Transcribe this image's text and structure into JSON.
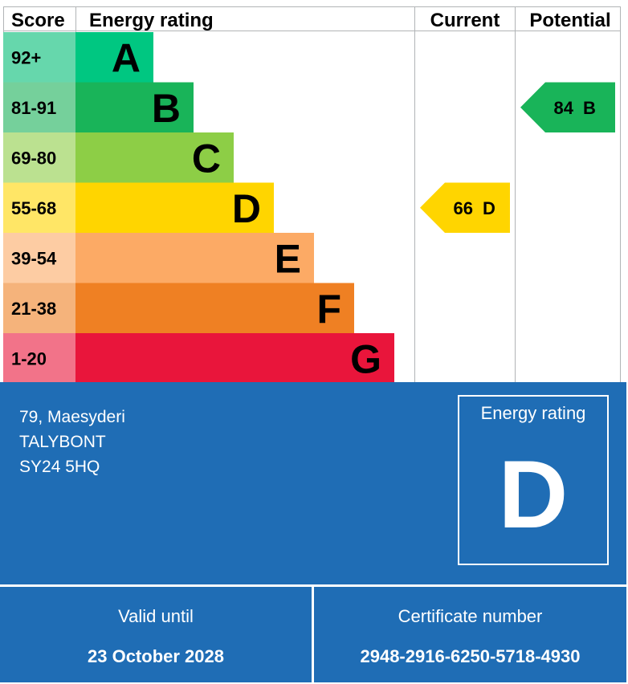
{
  "chart_data": {
    "type": "bar",
    "title": "",
    "headers": {
      "score": "Score",
      "rating": "Energy rating",
      "current": "Current",
      "potential": "Potential"
    },
    "bands": [
      {
        "letter": "A",
        "range": "92+",
        "color": "#00c781",
        "score_bg": "#66d7ac"
      },
      {
        "letter": "B",
        "range": "81-91",
        "color": "#19b459",
        "score_bg": "#75d09b"
      },
      {
        "letter": "C",
        "range": "69-80",
        "color": "#8dce46",
        "score_bg": "#bbe190"
      },
      {
        "letter": "D",
        "range": "55-68",
        "color": "#ffd500",
        "score_bg": "#ffe666"
      },
      {
        "letter": "E",
        "range": "39-54",
        "color": "#fcaa65",
        "score_bg": "#fdcca3"
      },
      {
        "letter": "F",
        "range": "21-38",
        "color": "#ef8023",
        "score_bg": "#f5b37b"
      },
      {
        "letter": "G",
        "range": "1-20",
        "color": "#e9153b",
        "score_bg": "#f27389"
      }
    ],
    "current": {
      "value": 66,
      "band": "D",
      "color": "#ffd500"
    },
    "potential": {
      "value": 84,
      "band": "B",
      "color": "#19b459"
    }
  },
  "property": {
    "address_lines": [
      "79, Maesyderi",
      "TALYBONT",
      "SY24 5HQ"
    ]
  },
  "rating_box": {
    "label": "Energy rating",
    "letter": "D"
  },
  "footer": {
    "valid_label": "Valid until",
    "valid_value": "23 October 2028",
    "cert_label": "Certificate number",
    "cert_value": "2948-2916-6250-5718-4930"
  },
  "colors": {
    "panel_blue": "#1f6db5",
    "grid_line": "#b1b4b6"
  }
}
